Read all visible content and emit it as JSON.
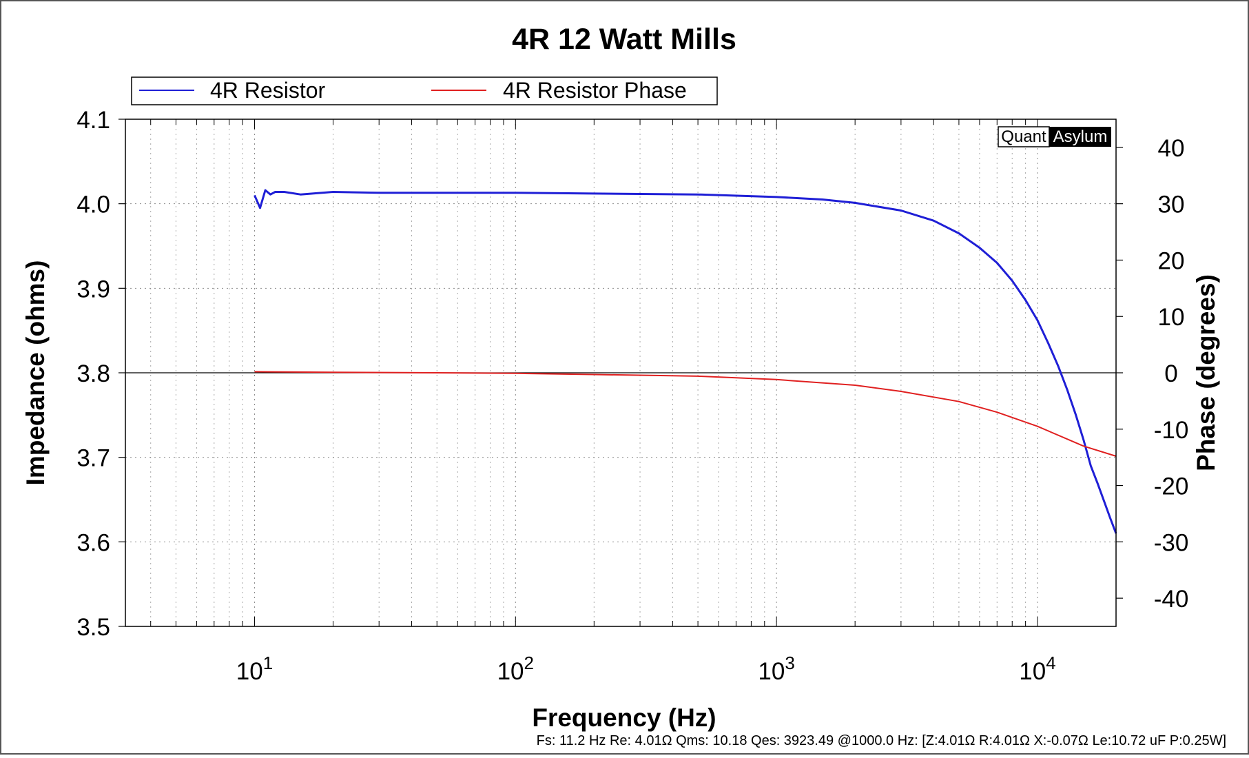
{
  "chart_data": {
    "type": "line",
    "title": "4R 12 Watt Mills",
    "xlabel": "Frequency (Hz)",
    "ylabel": "Impedance (ohms)",
    "y2label": "Phase (degrees)",
    "xscale": "log",
    "xlim": [
      3.2,
      20000
    ],
    "ylim": [
      3.5,
      4.1
    ],
    "y2lim": [
      -45,
      45
    ],
    "x_tick_labels": [
      {
        "base": "10",
        "exp": "1",
        "value": 10
      },
      {
        "base": "10",
        "exp": "2",
        "value": 100
      },
      {
        "base": "10",
        "exp": "3",
        "value": 1000
      },
      {
        "base": "10",
        "exp": "4",
        "value": 10000
      }
    ],
    "y_ticks": [
      3.5,
      3.6,
      3.7,
      3.8,
      3.9,
      4.0,
      4.1
    ],
    "y_tick_labels": [
      "3.5",
      "3.6",
      "3.7",
      "3.8",
      "3.9",
      "4.0",
      "4.1"
    ],
    "y2_ticks": [
      -40,
      -30,
      -20,
      -10,
      0,
      10,
      20,
      30,
      40
    ],
    "y2_tick_labels": [
      "-40",
      "-30",
      "-20",
      "-10",
      "0",
      "10",
      "20",
      "30",
      "40"
    ],
    "grid": true,
    "legend_position": "top-left",
    "series": [
      {
        "name": "4R Resistor",
        "axis": "left",
        "color": "#1f1fd6",
        "x": [
          10,
          10.5,
          11,
          11.5,
          12,
          13,
          15,
          20,
          30,
          50,
          100,
          200,
          500,
          1000,
          1500,
          2000,
          3000,
          4000,
          5000,
          6000,
          7000,
          8000,
          9000,
          10000,
          11000,
          12000,
          13000,
          14000,
          15000,
          16000,
          17000,
          18000,
          19000,
          20000
        ],
        "y": [
          4.01,
          3.995,
          4.016,
          4.011,
          4.014,
          4.014,
          4.011,
          4.014,
          4.013,
          4.013,
          4.013,
          4.012,
          4.011,
          4.008,
          4.005,
          4.001,
          3.992,
          3.98,
          3.965,
          3.948,
          3.93,
          3.909,
          3.886,
          3.862,
          3.835,
          3.808,
          3.78,
          3.751,
          3.721,
          3.69,
          3.669,
          3.648,
          3.628,
          3.61
        ]
      },
      {
        "name": "4R Resistor Phase",
        "axis": "right",
        "color": "#e02020",
        "x": [
          10,
          20,
          50,
          100,
          200,
          500,
          1000,
          2000,
          3000,
          5000,
          7000,
          10000,
          15000,
          20000
        ],
        "y": [
          0.2,
          0.1,
          0,
          -0.1,
          -0.3,
          -0.6,
          -1.2,
          -2.2,
          -3.3,
          -5.1,
          -7.0,
          -9.5,
          -13.0,
          -14.8
        ]
      }
    ],
    "badge": {
      "left": "Quant",
      "right": "Asylum"
    },
    "footer": "Fs: 11.2 Hz  Re: 4.01Ω  Qms: 10.18  Qes: 3923.49  @1000.0 Hz: [Z:4.01Ω  R:4.01Ω  X:-0.07Ω Le:10.72 uF  P:0.25W]"
  }
}
